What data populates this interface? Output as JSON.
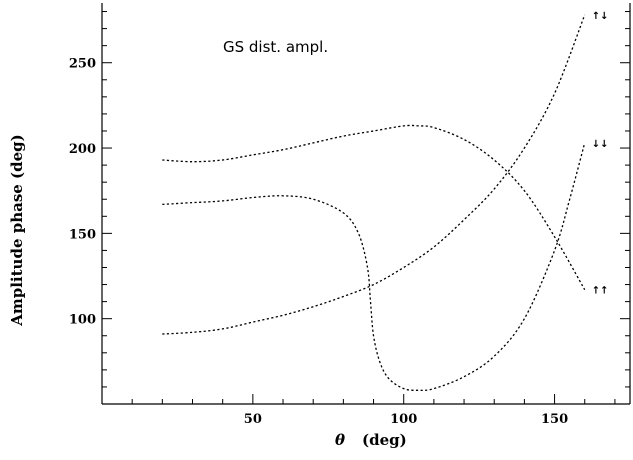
{
  "chart_data": {
    "type": "line",
    "xlabel_symbol": "θ",
    "xlabel_unit": "(deg)",
    "ylabel": "Amplitude phase  (deg)",
    "annotation": "GS dist. ampl.",
    "xlim": [
      0,
      175
    ],
    "ylim": [
      50,
      285
    ],
    "x_major_ticks": [
      50,
      100,
      150
    ],
    "y_major_ticks": [
      100,
      150,
      200,
      250
    ],
    "x_minor_step": 10,
    "y_minor_step": 10,
    "series": [
      {
        "name": "↑↓",
        "x": [
          20,
          30,
          40,
          50,
          60,
          70,
          80,
          90,
          100,
          110,
          120,
          130,
          140,
          150,
          160
        ],
        "y": [
          91,
          92,
          94,
          98,
          102,
          107,
          113,
          120,
          130,
          142,
          158,
          176,
          200,
          232,
          278
        ]
      },
      {
        "name": "↓↓",
        "x": [
          20,
          30,
          40,
          50,
          60,
          70,
          80,
          85,
          88,
          89,
          90,
          92,
          95,
          100,
          105,
          110,
          120,
          130,
          140,
          150,
          155,
          160
        ],
        "y": [
          167,
          168,
          169,
          171,
          172,
          170,
          162,
          150,
          130,
          110,
          90,
          75,
          65,
          59,
          58,
          59,
          66,
          78,
          100,
          140,
          170,
          203
        ]
      },
      {
        "name": "↑↑",
        "x": [
          20,
          30,
          40,
          50,
          60,
          70,
          80,
          90,
          100,
          105,
          110,
          120,
          130,
          140,
          150,
          160
        ],
        "y": [
          193,
          192,
          193,
          196,
          199,
          203,
          207,
          210,
          213,
          213,
          212,
          205,
          193,
          175,
          148,
          117
        ]
      }
    ]
  }
}
